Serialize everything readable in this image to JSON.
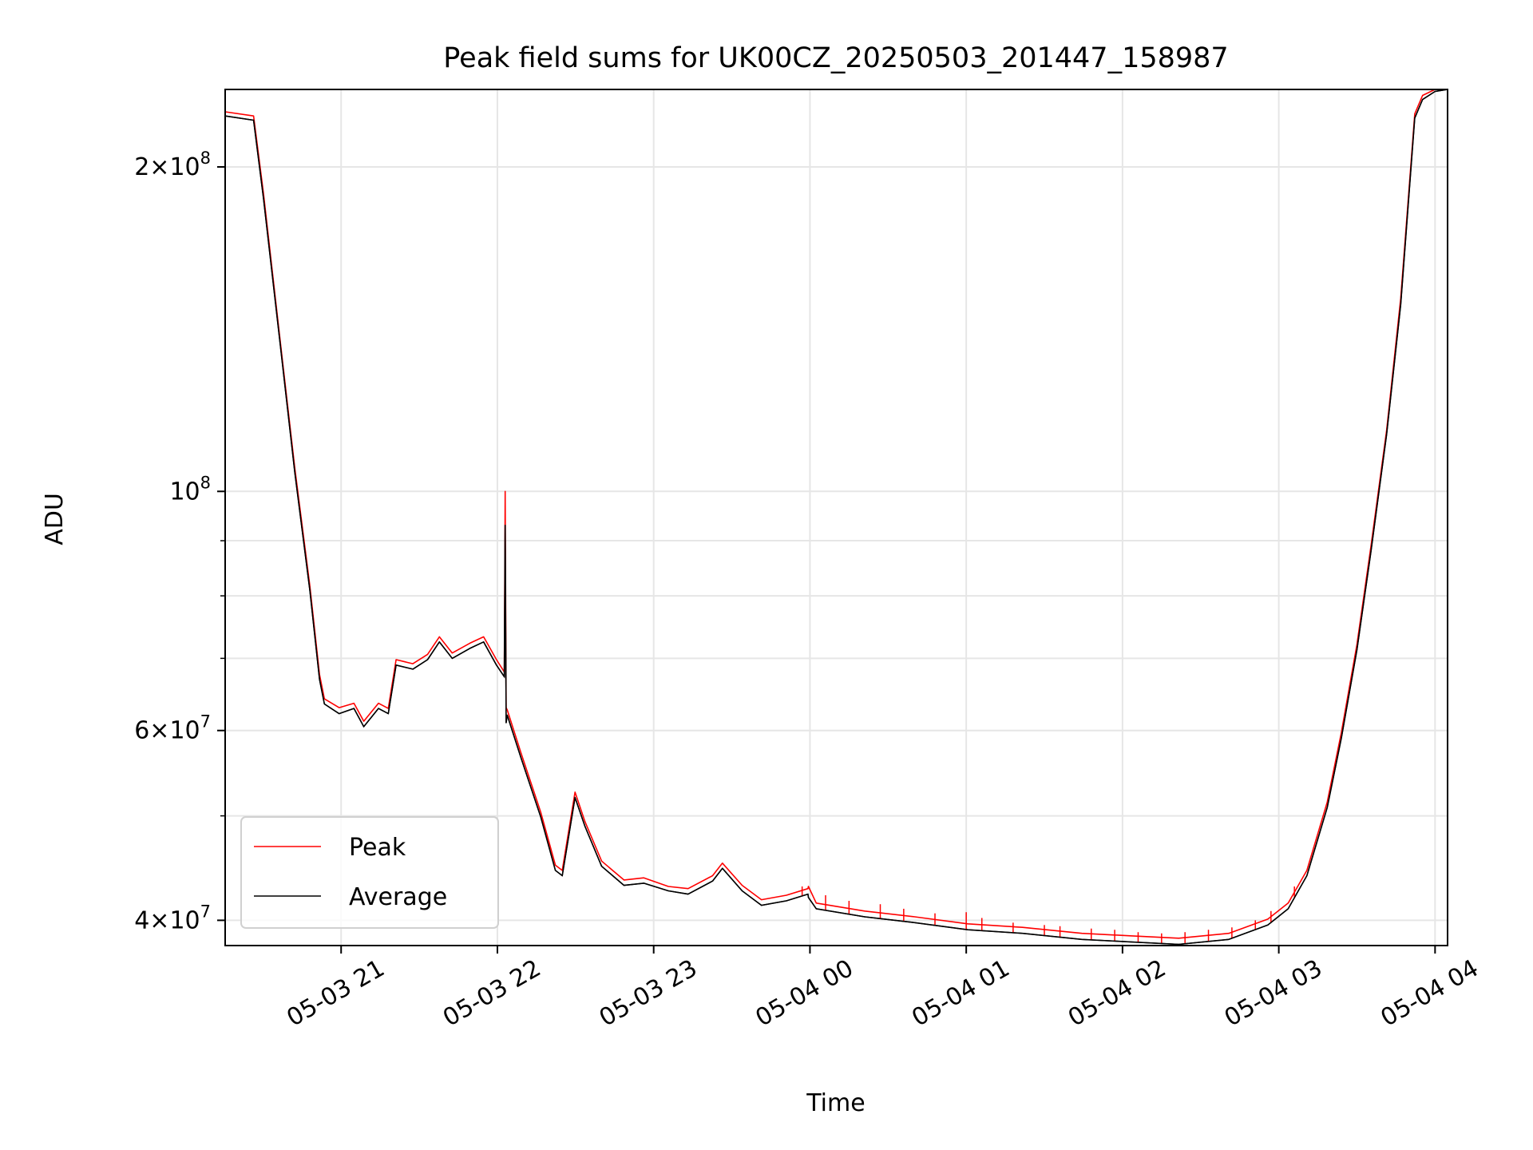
{
  "chart_data": {
    "type": "line",
    "title": "Peak field sums for UK00CZ_20250503_201447_158987",
    "xlabel": "Time",
    "ylabel": "ADU",
    "x_units": "hours since 05-03 20:00",
    "xlim": [
      0.258,
      8.08
    ],
    "ylim": [
      37900000.0,
      236000000.0
    ],
    "yscale": "log",
    "grid": true,
    "legend_position": "lower-left",
    "x_ticks": [
      {
        "t": 1,
        "label": "05-03 21"
      },
      {
        "t": 2,
        "label": "05-03 22"
      },
      {
        "t": 3,
        "label": "05-03 23"
      },
      {
        "t": 4,
        "label": "05-04 00"
      },
      {
        "t": 5,
        "label": "05-04 01"
      },
      {
        "t": 6,
        "label": "05-04 02"
      },
      {
        "t": 7,
        "label": "05-04 03"
      },
      {
        "t": 8,
        "label": "05-04 04"
      }
    ],
    "y_major_ticks": [
      {
        "v": 200000000.0,
        "mant": "2",
        "exp": "8"
      },
      {
        "v": 100000000.0,
        "mant": "",
        "exp": "8"
      },
      {
        "v": 60000000.0,
        "mant": "6",
        "exp": "7"
      },
      {
        "v": 40000000.0,
        "mant": "4",
        "exp": "7"
      }
    ],
    "y_minor_ticks": [
      90000000.0,
      80000000.0,
      70000000.0,
      50000000.0
    ],
    "series": [
      {
        "name": "Peak",
        "color": "#ff0000",
        "x": [
          0.258,
          0.44,
          0.503,
          0.61,
          0.704,
          0.8,
          0.862,
          0.893,
          0.987,
          1.082,
          1.145,
          1.239,
          1.302,
          1.352,
          1.459,
          1.553,
          1.629,
          1.711,
          1.824,
          1.912,
          1.994,
          2.044,
          2.05,
          2.056,
          2.063,
          2.151,
          2.277,
          2.371,
          2.415,
          2.497,
          2.56,
          2.667,
          2.81,
          2.937,
          3.094,
          3.22,
          3.377,
          3.44,
          3.566,
          3.69,
          3.849,
          3.987,
          3.99,
          4.04,
          4.35,
          4.67,
          5.01,
          5.36,
          5.74,
          6.05,
          6.36,
          6.68,
          6.93,
          7.06,
          7.18,
          7.31,
          7.4,
          7.5,
          7.59,
          7.69,
          7.78,
          7.87,
          7.92,
          8.0,
          8.08
        ],
        "y": [
          225000000.0,
          223000000.0,
          189000000.0,
          138000000.0,
          105000000.0,
          81700000.0,
          67600000.0,
          64200000.0,
          63000000.0,
          63600000.0,
          61200000.0,
          63600000.0,
          62900000.0,
          69800000.0,
          69200000.0,
          70600000.0,
          73300000.0,
          70800000.0,
          72300000.0,
          73300000.0,
          69800000.0,
          68000000.0,
          100000000.0,
          63000000.0,
          62700000.0,
          57200000.0,
          50400000.0,
          45000000.0,
          44500000.0,
          52600000.0,
          49400000.0,
          45400000.0,
          43600000.0,
          43800000.0,
          43000000.0,
          42800000.0,
          44000000.0,
          45200000.0,
          43100000.0,
          41800000.0,
          42200000.0,
          42800000.0,
          43000000.0,
          41500000.0,
          40800000.0,
          40300000.0,
          39700000.0,
          39400000.0,
          38900000.0,
          38700000.0,
          38500000.0,
          38900000.0,
          40100000.0,
          41500000.0,
          44500000.0,
          51500000.0,
          59700000.0,
          72100000.0,
          89000000.0,
          114000000.0,
          151000000.0,
          224000000.0,
          233000000.0,
          236000000.0,
          236000000.0
        ],
        "spikes": [
          [
            3.95,
            43000000.0
          ],
          [
            4.1,
            42200000.0
          ],
          [
            4.25,
            41700000.0
          ],
          [
            4.45,
            41400000.0
          ],
          [
            4.6,
            41000000.0
          ],
          [
            4.8,
            40600000.0
          ],
          [
            5.0,
            40700000.0
          ],
          [
            5.1,
            40200000.0
          ],
          [
            5.3,
            39800000.0
          ],
          [
            5.5,
            39600000.0
          ],
          [
            5.6,
            39500000.0
          ],
          [
            5.8,
            39300000.0
          ],
          [
            5.95,
            39200000.0
          ],
          [
            6.1,
            39000000.0
          ],
          [
            6.25,
            38900000.0
          ],
          [
            6.4,
            39000000.0
          ],
          [
            6.55,
            39200000.0
          ],
          [
            6.7,
            39400000.0
          ],
          [
            6.85,
            40000000.0
          ],
          [
            6.95,
            40800000.0
          ],
          [
            7.1,
            43000000.0
          ]
        ]
      },
      {
        "name": "Average",
        "color": "#000000",
        "x": [
          0.258,
          0.44,
          0.503,
          0.61,
          0.704,
          0.8,
          0.862,
          0.893,
          0.987,
          1.082,
          1.145,
          1.239,
          1.302,
          1.352,
          1.459,
          1.553,
          1.629,
          1.711,
          1.824,
          1.912,
          1.994,
          2.044,
          2.05,
          2.056,
          2.063,
          2.151,
          2.277,
          2.371,
          2.415,
          2.497,
          2.56,
          2.667,
          2.81,
          2.937,
          3.094,
          3.22,
          3.377,
          3.44,
          3.566,
          3.69,
          3.849,
          3.987,
          3.99,
          4.04,
          4.35,
          4.67,
          5.01,
          5.36,
          5.74,
          6.05,
          6.36,
          6.68,
          6.93,
          7.06,
          7.18,
          7.31,
          7.4,
          7.5,
          7.59,
          7.69,
          7.78,
          7.87,
          7.92,
          8.0,
          8.08
        ],
        "y": [
          223000000.0,
          221000000.0,
          187000000.0,
          137000000.0,
          104000000.0,
          80900000.0,
          66900000.0,
          63500000.0,
          62200000.0,
          62900000.0,
          60500000.0,
          62900000.0,
          62200000.0,
          69000000.0,
          68400000.0,
          69800000.0,
          72500000.0,
          70000000.0,
          71500000.0,
          72500000.0,
          69000000.0,
          67300000.0,
          93000000.0,
          61000000.0,
          62000000.0,
          56600000.0,
          49900000.0,
          44500000.0,
          44000000.0,
          52000000.0,
          48900000.0,
          44900000.0,
          43100000.0,
          43300000.0,
          42600000.0,
          42300000.0,
          43500000.0,
          44700000.0,
          42600000.0,
          41300000.0,
          41700000.0,
          42300000.0,
          42000000.0,
          41000000.0,
          40300000.0,
          39800000.0,
          39200000.0,
          38900000.0,
          38400000.0,
          38200000.0,
          38000000.0,
          38400000.0,
          39600000.0,
          41000000.0,
          44000000.0,
          50900000.0,
          59000000.0,
          71300000.0,
          88000000.0,
          113000000.0,
          149000000.0,
          222000000.0,
          231000000.0,
          235000000.0,
          236000000.0
        ]
      }
    ]
  }
}
